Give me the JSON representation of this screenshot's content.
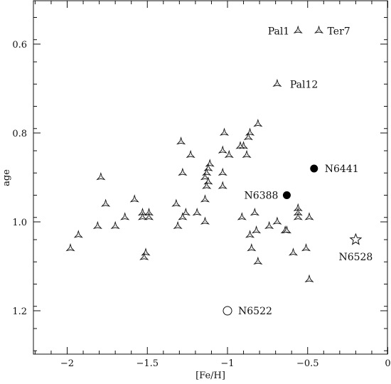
{
  "chart_data": {
    "type": "scatter",
    "xlabel": "[Fe/H]",
    "ylabel": "age",
    "xlim": [
      -2.2,
      0
    ],
    "ylim": [
      1.3,
      0.52
    ],
    "y_inverted": true,
    "x_ticks": [
      -2,
      -1.5,
      -1,
      -0.5,
      0
    ],
    "x_tick_labels": [
      "−2",
      "−1.5",
      "−1",
      "−0.5",
      "0"
    ],
    "y_ticks": [
      0.6,
      0.8,
      1.0,
      1.2
    ],
    "y_tick_labels": [
      "0.6",
      "0.8",
      "1.0",
      "1.2"
    ],
    "grid": false,
    "series": [
      {
        "marker": "three-pointed-star",
        "points": [
          [
            -0.56,
            0.57
          ],
          [
            -0.43,
            0.57
          ],
          [
            -0.69,
            0.69
          ],
          [
            -0.81,
            0.78
          ],
          [
            -0.86,
            0.8
          ],
          [
            -0.87,
            0.81
          ],
          [
            -0.9,
            0.83
          ],
          [
            -0.92,
            0.83
          ],
          [
            -0.88,
            0.85
          ],
          [
            -1.02,
            0.8
          ],
          [
            -1.03,
            0.84
          ],
          [
            -0.99,
            0.85
          ],
          [
            -1.29,
            0.82
          ],
          [
            -1.23,
            0.85
          ],
          [
            -1.28,
            0.89
          ],
          [
            -1.11,
            0.87
          ],
          [
            -1.12,
            0.88
          ],
          [
            -1.13,
            0.89
          ],
          [
            -1.14,
            0.9
          ],
          [
            -1.12,
            0.91
          ],
          [
            -1.13,
            0.92
          ],
          [
            -1.03,
            0.89
          ],
          [
            -1.03,
            0.92
          ],
          [
            -1.14,
            0.95
          ],
          [
            -1.79,
            0.9
          ],
          [
            -1.76,
            0.96
          ],
          [
            -1.58,
            0.95
          ],
          [
            -1.53,
            0.98
          ],
          [
            -1.53,
            0.99
          ],
          [
            -1.49,
            0.98
          ],
          [
            -1.49,
            0.99
          ],
          [
            -1.64,
            0.99
          ],
          [
            -1.7,
            1.01
          ],
          [
            -1.81,
            1.01
          ],
          [
            -1.93,
            1.03
          ],
          [
            -1.98,
            1.06
          ],
          [
            -1.51,
            1.07
          ],
          [
            -1.52,
            1.08
          ],
          [
            -1.32,
            0.96
          ],
          [
            -1.26,
            0.98
          ],
          [
            -1.28,
            0.99
          ],
          [
            -1.19,
            0.98
          ],
          [
            -1.31,
            1.01
          ],
          [
            -1.14,
            1.0
          ],
          [
            -0.91,
            0.99
          ],
          [
            -0.83,
            0.98
          ],
          [
            -0.74,
            1.01
          ],
          [
            -0.82,
            1.02
          ],
          [
            -0.69,
            1.0
          ],
          [
            -0.86,
            1.03
          ],
          [
            -0.85,
            1.06
          ],
          [
            -0.81,
            1.09
          ],
          [
            -0.64,
            1.02
          ],
          [
            -0.63,
            1.02
          ],
          [
            -0.59,
            1.07
          ],
          [
            -0.51,
            1.06
          ],
          [
            -0.49,
            1.13
          ],
          [
            -0.56,
            0.97
          ],
          [
            -0.56,
            0.98
          ],
          [
            -0.56,
            0.99
          ],
          [
            -0.49,
            0.99
          ]
        ]
      },
      {
        "marker": "filled-circle",
        "points": [
          [
            -0.46,
            0.88
          ],
          [
            -0.63,
            0.94
          ]
        ]
      },
      {
        "marker": "open-circle",
        "points": [
          [
            -1.0,
            1.2
          ]
        ]
      },
      {
        "marker": "open-five-pointed-star",
        "points": [
          [
            -0.2,
            1.04
          ]
        ]
      }
    ],
    "annotations": [
      {
        "text": "Pal1",
        "x": -0.56,
        "y": 0.57
      },
      {
        "text": "Ter7",
        "x": -0.43,
        "y": 0.57
      },
      {
        "text": "Pal12",
        "x": -0.69,
        "y": 0.69
      },
      {
        "text": "N6441",
        "x": -0.46,
        "y": 0.88
      },
      {
        "text": "N6388",
        "x": -0.63,
        "y": 0.94
      },
      {
        "text": "N6528",
        "x": -0.2,
        "y": 1.04
      },
      {
        "text": "N6522",
        "x": -1.0,
        "y": 1.2
      }
    ]
  }
}
